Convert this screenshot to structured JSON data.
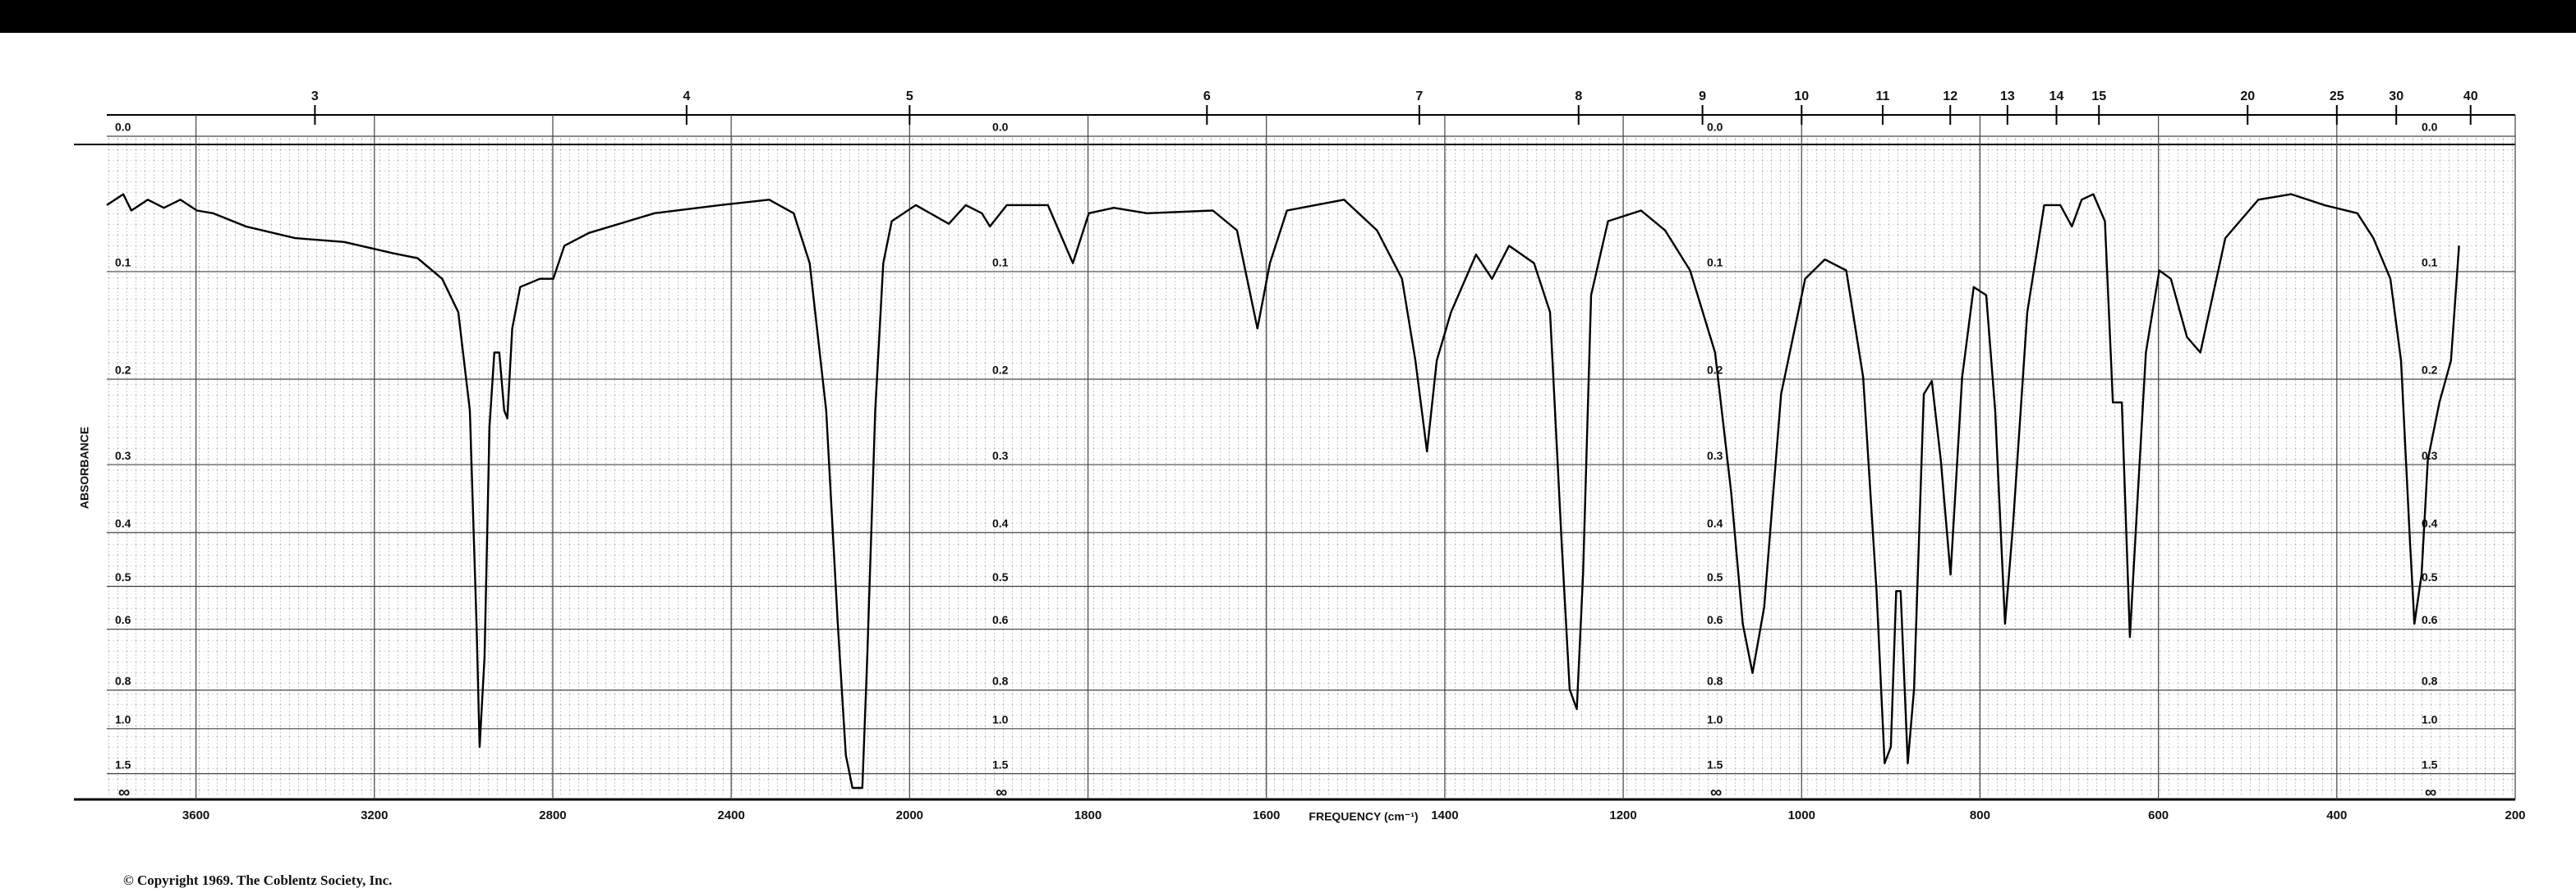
{
  "chart_data": {
    "type": "line",
    "x_axis_label": "FREQUENCY (cm⁻¹)",
    "y_axis_label": "ABSORBANCE",
    "copyright": "© Copyright 1969.  The Coblentz Society, Inc.",
    "color": "#000000",
    "grid": true,
    "yscale": "absorbance",
    "y_end_label": "∞",
    "xlim": [
      3800,
      200
    ],
    "x_scale_break": 2000,
    "xticks": [
      3600,
      3200,
      2800,
      2400,
      2000,
      1800,
      1600,
      1400,
      1200,
      1000,
      800,
      600,
      400,
      200
    ],
    "x2ticks": [
      3,
      4,
      5,
      6,
      7,
      8,
      9,
      10,
      11,
      12,
      13,
      14,
      15,
      20,
      25,
      30,
      40
    ],
    "yticks": [
      {
        "value": 0,
        "label": "0.0"
      },
      0.1,
      0.2,
      0.3,
      0.4,
      0.5,
      0.6,
      0.8,
      {
        "value": 1,
        "label": "1.0"
      },
      1.5
    ],
    "x": [
      3800,
      3763,
      3745,
      3708,
      3672,
      3635,
      3598,
      3562,
      3488,
      3378,
      3268,
      3158,
      3103,
      3048,
      3012,
      2986,
      2971,
      2964,
      2953,
      2942,
      2931,
      2920,
      2909,
      2902,
      2891,
      2873,
      2829,
      2799,
      2774,
      2719,
      2572,
      2425,
      2315,
      2260,
      2224,
      2187,
      2161,
      2143,
      2128,
      2106,
      2095,
      2077,
      2059,
      2040,
      1993,
      1956,
      1937,
      1919,
      1910,
      1891,
      1845,
      1817,
      1799,
      1771,
      1734,
      1660,
      1633,
      1610,
      1596,
      1577,
      1513,
      1476,
      1448,
      1433,
      1420,
      1409,
      1393,
      1365,
      1347,
      1328,
      1300,
      1282,
      1269,
      1260,
      1252,
      1245,
      1236,
      1217,
      1180,
      1153,
      1125,
      1097,
      1079,
      1066,
      1055,
      1042,
      1023,
      996,
      974,
      950,
      931,
      916,
      907,
      900,
      894,
      889,
      881,
      874,
      863,
      854,
      844,
      833,
      820,
      807,
      793,
      783,
      772,
      763,
      747,
      728,
      710,
      697,
      686,
      673,
      660,
      651,
      641,
      632,
      623,
      614,
      599,
      586,
      568,
      553,
      525,
      488,
      451,
      414,
      377,
      359,
      340,
      328,
      318,
      313,
      305,
      298,
      285,
      272,
      263
    ],
    "values": [
      0.048,
      0.04,
      0.052,
      0.044,
      0.05,
      0.044,
      0.052,
      0.054,
      0.064,
      0.073,
      0.076,
      0.085,
      0.089,
      0.106,
      0.135,
      0.234,
      0.586,
      1.141,
      0.679,
      0.253,
      0.173,
      0.173,
      0.234,
      0.243,
      0.15,
      0.113,
      0.106,
      0.106,
      0.079,
      0.069,
      0.054,
      0.048,
      0.044,
      0.054,
      0.093,
      0.234,
      0.586,
      1.223,
      2.0,
      2.0,
      0.679,
      0.234,
      0.093,
      0.06,
      0.048,
      0.062,
      0.048,
      0.054,
      0.064,
      0.048,
      0.048,
      0.093,
      0.054,
      0.05,
      0.054,
      0.052,
      0.067,
      0.15,
      0.093,
      0.052,
      0.044,
      0.067,
      0.106,
      0.181,
      0.283,
      0.181,
      0.135,
      0.086,
      0.106,
      0.079,
      0.093,
      0.135,
      0.416,
      0.797,
      0.887,
      0.476,
      0.12,
      0.06,
      0.052,
      0.067,
      0.099,
      0.173,
      0.338,
      0.586,
      0.734,
      0.546,
      0.216,
      0.106,
      0.09,
      0.099,
      0.198,
      0.51,
      1.324,
      1.141,
      0.51,
      0.51,
      1.324,
      0.797,
      0.216,
      0.202,
      0.294,
      0.476,
      0.198,
      0.113,
      0.12,
      0.234,
      0.586,
      0.388,
      0.135,
      0.048,
      0.048,
      0.064,
      0.044,
      0.04,
      0.06,
      0.225,
      0.225,
      0.621,
      0.338,
      0.173,
      0.099,
      0.106,
      0.158,
      0.173,
      0.073,
      0.044,
      0.04,
      0.048,
      0.054,
      0.073,
      0.106,
      0.181,
      0.416,
      0.586,
      0.476,
      0.294,
      0.225,
      0.181,
      0.079
    ]
  }
}
